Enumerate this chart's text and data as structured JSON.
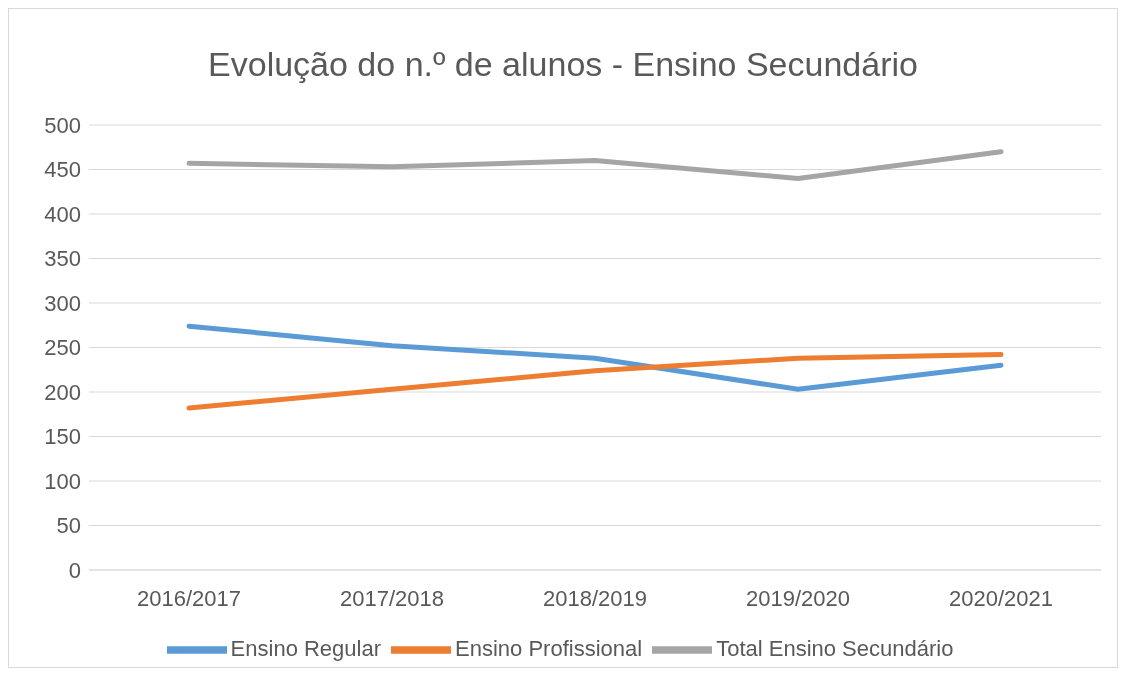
{
  "chart_data": {
    "type": "line",
    "title": "Evolução do n.º de alunos - Ensino Secundário",
    "categories": [
      "2016/2017",
      "2017/2018",
      "2018/2019",
      "2019/2020",
      "2020/2021"
    ],
    "series": [
      {
        "name": "Ensino Regular",
        "color": "#5b9bd5",
        "values": [
          274,
          252,
          238,
          203,
          230
        ]
      },
      {
        "name": "Ensino Profissional",
        "color": "#ed7d31",
        "values": [
          182,
          203,
          224,
          238,
          242
        ]
      },
      {
        "name": "Total Ensino Secundário",
        "color": "#a5a5a5",
        "values": [
          457,
          453,
          460,
          440,
          470
        ]
      }
    ],
    "ylim": [
      0,
      500
    ],
    "yticks": [
      0,
      50,
      100,
      150,
      200,
      250,
      300,
      350,
      400,
      450,
      500
    ],
    "grid": "y",
    "legend": "bottom",
    "marker": "none",
    "line_style": "solid"
  }
}
